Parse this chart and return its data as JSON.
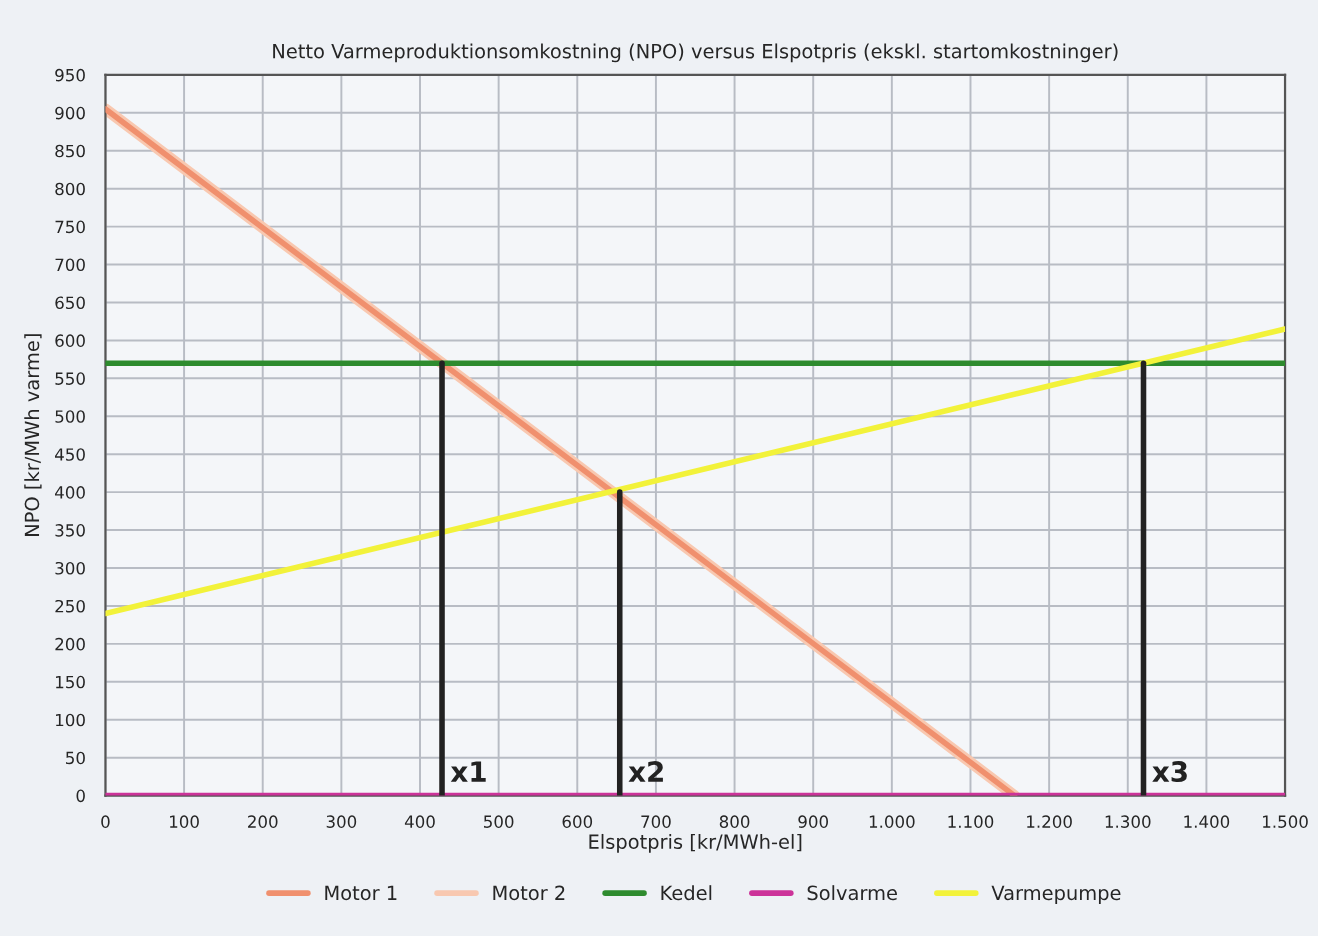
{
  "chart_data": {
    "type": "line",
    "title": "Netto Varmeproduktionsomkostning (NPO) versus Elspotpris (ekskl. startomkostninger)",
    "xlabel": "Elspotpris [kr/MWh-el]",
    "ylabel": "NPO [kr/MWh varme]",
    "xlim": [
      0,
      1500
    ],
    "ylim": [
      0,
      950
    ],
    "xticks": [
      0,
      100,
      200,
      300,
      400,
      500,
      600,
      700,
      800,
      900,
      {
        "value": 1000,
        "label": "1.000"
      },
      {
        "value": 1100,
        "label": "1.100"
      },
      {
        "value": 1200,
        "label": "1.200"
      },
      {
        "value": 1300,
        "label": "1.300"
      },
      {
        "value": 1400,
        "label": "1.400"
      },
      {
        "value": 1500,
        "label": "1.500"
      }
    ],
    "yticks": [
      0,
      50,
      100,
      150,
      200,
      250,
      300,
      350,
      400,
      450,
      500,
      550,
      600,
      650,
      700,
      750,
      800,
      850,
      900,
      950
    ],
    "grid": true,
    "legend": "bottom",
    "marker": "none",
    "line_style": "solid",
    "series": [
      {
        "name": "Motor 1",
        "color": "#f0906e",
        "x": [
          0,
          1156
        ],
        "values": [
          905,
          0
        ]
      },
      {
        "name": "Motor 2",
        "color": "#f8c8b0",
        "x": [
          0,
          1156
        ],
        "values": [
          905,
          0
        ]
      },
      {
        "name": "Kedel",
        "color": "#2e8b2e",
        "x": [
          0,
          1500
        ],
        "values": [
          570,
          570
        ]
      },
      {
        "name": "Solvarme",
        "color": "#cc3399",
        "x": [
          0,
          1500
        ],
        "values": [
          0,
          0
        ]
      },
      {
        "name": "Varmepumpe",
        "color": "#f2f23a",
        "x": [
          0,
          1500
        ],
        "values": [
          240,
          615
        ]
      },
      {
        "color": "#222222",
        "x": [
          428,
          428
        ],
        "values": [
          0,
          570
        ]
      },
      {
        "color": "#222222",
        "x": [
          654,
          654
        ],
        "values": [
          0,
          400
        ]
      },
      {
        "color": "#222222",
        "x": [
          1320,
          1320
        ],
        "values": [
          0,
          570
        ]
      }
    ],
    "annotations": [
      {
        "text": "x1",
        "x": 428,
        "y": 0
      },
      {
        "text": "x2",
        "x": 654,
        "y": 0
      },
      {
        "text": "x3",
        "x": 1320,
        "y": 0
      }
    ]
  }
}
